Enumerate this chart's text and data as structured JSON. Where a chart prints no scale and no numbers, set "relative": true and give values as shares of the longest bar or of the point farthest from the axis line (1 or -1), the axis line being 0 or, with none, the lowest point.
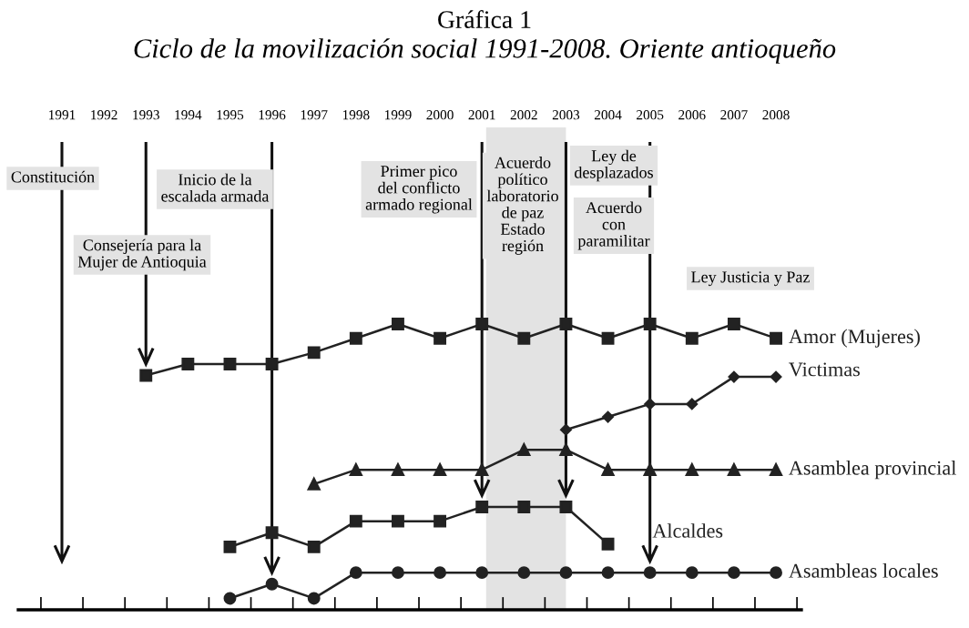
{
  "chart_data": {
    "type": "line",
    "title": "Gráfica 1",
    "subtitle": "Ciclo de la movilización social 1991-2008. Oriente antioqueño",
    "relative": true,
    "legend": false,
    "grid": false,
    "categories": [
      "1991",
      "1992",
      "1993",
      "1994",
      "1995",
      "1996",
      "1997",
      "1998",
      "1999",
      "2000",
      "2001",
      "2002",
      "2003",
      "2004",
      "2005",
      "2006",
      "2007",
      "2008"
    ],
    "series": [
      {
        "name": "Amor (Mujeres)",
        "color": "#222222",
        "marker": "square",
        "values": [
          null,
          null,
          0.82,
          0.86,
          0.86,
          0.86,
          0.9,
          0.95,
          1.0,
          0.95,
          1.0,
          0.95,
          1.0,
          0.95,
          1.0,
          0.95,
          1.0,
          0.95
        ]
      },
      {
        "name": "Victimas",
        "color": "#222222",
        "marker": "diamond",
        "values": [
          null,
          null,
          null,
          null,
          null,
          null,
          null,
          null,
          null,
          null,
          null,
          null,
          0.63,
          0.675,
          0.72,
          0.72,
          0.815,
          0.815
        ]
      },
      {
        "name": "Asamblea provincial",
        "color": "#222222",
        "marker": "triangle",
        "values": [
          null,
          null,
          null,
          null,
          null,
          null,
          0.44,
          0.49,
          0.49,
          0.49,
          0.49,
          0.56,
          0.56,
          0.49,
          0.49,
          0.49,
          0.49,
          0.49
        ]
      },
      {
        "name": "Alcaldes",
        "color": "#222222",
        "marker": "square",
        "values": [
          null,
          null,
          null,
          null,
          0.22,
          0.27,
          0.22,
          0.31,
          0.31,
          0.31,
          0.36,
          0.36,
          0.36,
          0.23,
          null,
          null,
          null,
          null
        ]
      },
      {
        "name": "Asambleas locales",
        "color": "#222222",
        "marker": "circle",
        "values": [
          null,
          null,
          null,
          null,
          0.04,
          0.09,
          0.04,
          0.13,
          0.13,
          0.13,
          0.13,
          0.13,
          0.13,
          0.13,
          0.13,
          0.13,
          0.13,
          0.13
        ]
      }
    ],
    "bands": [
      {
        "axis": "x",
        "from": "2001",
        "to": "2003",
        "color": "#e3e3e3"
      }
    ],
    "ref_lines": [
      {
        "axis": "x",
        "value": "1991",
        "label": "Constitución"
      },
      {
        "axis": "x",
        "value": "1993",
        "label": "Consejería para la\nMujer de Antioquia"
      },
      {
        "axis": "x",
        "value": "1996",
        "label": "Inicio de la\nescalada armada"
      },
      {
        "axis": "x",
        "value": "2001",
        "label": "Acuerdo\npolítico\nlaboratorio\nde paz\nEstado\nregión"
      },
      {
        "axis": "x",
        "value": "2003",
        "label": "Ley de\ndesplazados"
      },
      {
        "axis": "x",
        "value": "2005",
        "label": "Ley Justicia y Paz"
      }
    ],
    "annotations": [
      "Primer pico\ndel conflicto\narmado regional",
      "Acuerdo\ncon\nparamilitar"
    ]
  }
}
